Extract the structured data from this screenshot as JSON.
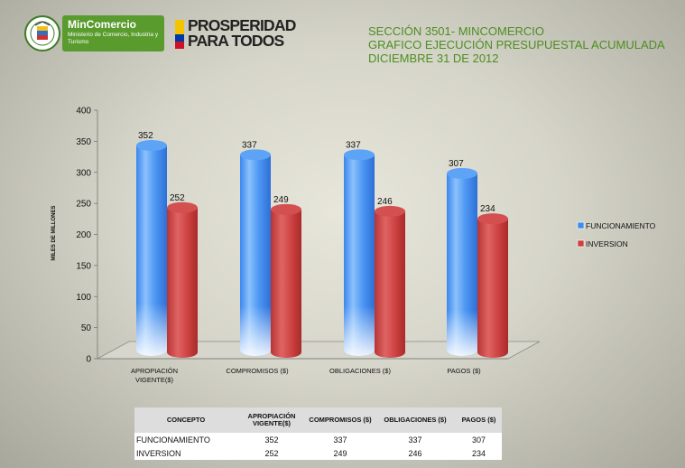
{
  "header": {
    "logo1": {
      "name": "MinComercio",
      "subtitle": "Ministerio de Comercio, Industria y Turismo"
    },
    "logo2": {
      "line1": "PROSPERIDAD",
      "line2": "PARA TODOS"
    },
    "titles": [
      "SECCIÓN 3501- MINCOMERCIO",
      "GRAFICO EJECUCIÓN PRESUPUESTAL ACUMULADA",
      "DICIEMBRE 31 DE 2012"
    ],
    "title_color": "#4c8e20"
  },
  "chart_data": {
    "type": "bar",
    "categories": [
      "APROPIACIÓN VIGENTE($)",
      "COMPROMISOS  ($)",
      "OBLIGACIONES      ($)",
      "PAGOS         ($)"
    ],
    "series": [
      {
        "name": "FUNCIONAMIENTO",
        "values": [
          352,
          337,
          337,
          307
        ],
        "color": "#3f8cf0"
      },
      {
        "name": "INVERSION",
        "values": [
          252,
          249,
          246,
          234
        ],
        "color": "#cc4040"
      }
    ],
    "ylabel": "MILES DE MILLONES",
    "ylim": [
      0,
      400
    ],
    "yticks": [
      0,
      50,
      100,
      150,
      200,
      250,
      300,
      350,
      400
    ],
    "legend": "right",
    "grid": false
  },
  "table": {
    "headers": [
      "CONCEPTO",
      "APROPIACIÓN VIGENTE($)",
      "COMPROMISOS ($)",
      "OBLIGACIONES ($)",
      "PAGOS ($)"
    ],
    "rows": [
      [
        "FUNCIONAMIENTO",
        "352",
        "337",
        "337",
        "307"
      ],
      [
        "INVERSION",
        "252",
        "249",
        "246",
        "234"
      ]
    ]
  }
}
